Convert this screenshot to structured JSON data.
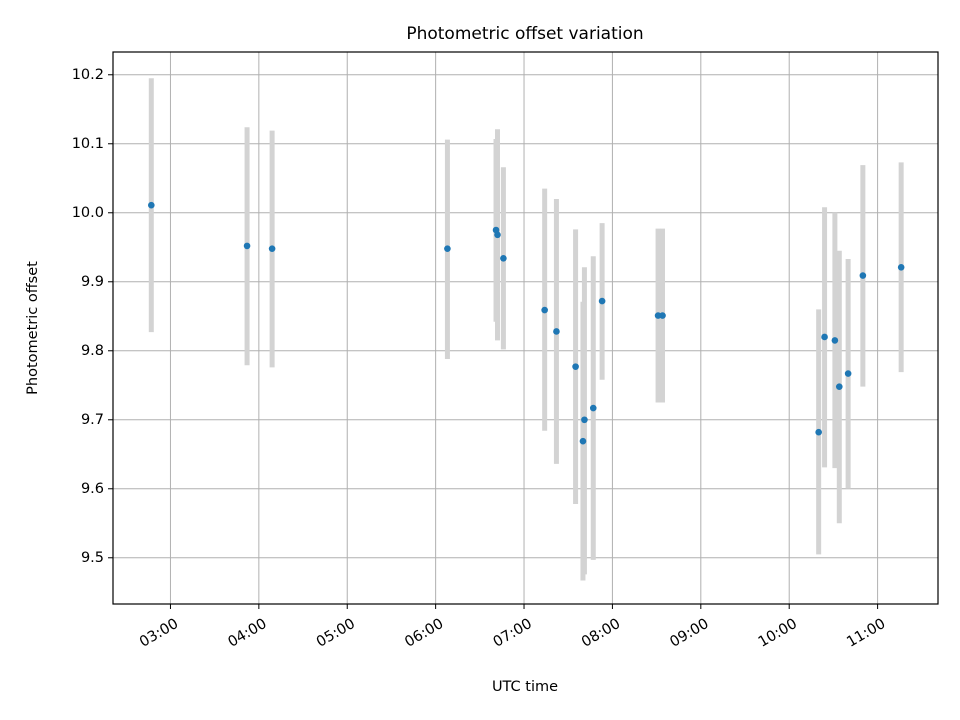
{
  "chart_data": {
    "type": "scatter",
    "title": "Photometric offset variation",
    "xlabel": "UTC time",
    "ylabel": "Photometric offset",
    "x_unit": "UTC time (HH:MM)",
    "xlim": [
      "02:21",
      "11:41"
    ],
    "ylim": [
      9.433,
      10.233
    ],
    "x_ticks": [
      "03:00",
      "04:00",
      "05:00",
      "06:00",
      "07:00",
      "08:00",
      "09:00",
      "10:00",
      "11:00"
    ],
    "y_ticks": [
      9.5,
      9.6,
      9.7,
      9.8,
      9.9,
      10.0,
      10.1,
      10.2
    ],
    "y_tick_labels": [
      "9.5",
      "9.6",
      "9.7",
      "9.8",
      "9.9",
      "10.0",
      "10.1",
      "10.2"
    ],
    "grid": true,
    "legend": "none",
    "colors": {
      "marker": "#1f77b4",
      "errorbar": "#d3d3d3",
      "grid": "#b0b0b0"
    },
    "points": [
      {
        "x": "02:47",
        "y": 10.011,
        "ylow": 9.827,
        "yhigh": 10.195
      },
      {
        "x": "03:52",
        "y": 9.952,
        "ylow": 9.779,
        "yhigh": 10.124
      },
      {
        "x": "04:09",
        "y": 9.948,
        "ylow": 9.776,
        "yhigh": 10.119
      },
      {
        "x": "06:08",
        "y": 9.948,
        "ylow": 9.788,
        "yhigh": 10.106
      },
      {
        "x": "06:41",
        "y": 9.975,
        "ylow": 9.842,
        "yhigh": 10.107
      },
      {
        "x": "06:42",
        "y": 9.968,
        "ylow": 9.815,
        "yhigh": 10.121
      },
      {
        "x": "06:46",
        "y": 9.934,
        "ylow": 9.802,
        "yhigh": 10.066
      },
      {
        "x": "07:14",
        "y": 9.859,
        "ylow": 9.684,
        "yhigh": 10.035
      },
      {
        "x": "07:22",
        "y": 9.828,
        "ylow": 9.636,
        "yhigh": 10.02
      },
      {
        "x": "07:35",
        "y": 9.777,
        "ylow": 9.578,
        "yhigh": 9.976
      },
      {
        "x": "07:40",
        "y": 9.669,
        "ylow": 9.467,
        "yhigh": 9.871
      },
      {
        "x": "07:41",
        "y": 9.7,
        "ylow": 9.476,
        "yhigh": 9.921
      },
      {
        "x": "07:47",
        "y": 9.717,
        "ylow": 9.497,
        "yhigh": 9.937
      },
      {
        "x": "07:53",
        "y": 9.872,
        "ylow": 9.758,
        "yhigh": 9.985
      },
      {
        "x": "08:31",
        "y": 9.851,
        "ylow": 9.725,
        "yhigh": 9.977
      },
      {
        "x": "08:34",
        "y": 9.851,
        "ylow": 9.725,
        "yhigh": 9.977
      },
      {
        "x": "10:20",
        "y": 9.682,
        "ylow": 9.505,
        "yhigh": 9.86
      },
      {
        "x": "10:24",
        "y": 9.82,
        "ylow": 9.631,
        "yhigh": 10.008
      },
      {
        "x": "10:31",
        "y": 9.815,
        "ylow": 9.63,
        "yhigh": 10.0
      },
      {
        "x": "10:34",
        "y": 9.748,
        "ylow": 9.55,
        "yhigh": 9.945
      },
      {
        "x": "10:40",
        "y": 9.767,
        "ylow": 9.6,
        "yhigh": 9.933
      },
      {
        "x": "10:50",
        "y": 9.909,
        "ylow": 9.748,
        "yhigh": 10.069
      },
      {
        "x": "11:16",
        "y": 9.921,
        "ylow": 9.769,
        "yhigh": 10.073
      }
    ]
  }
}
